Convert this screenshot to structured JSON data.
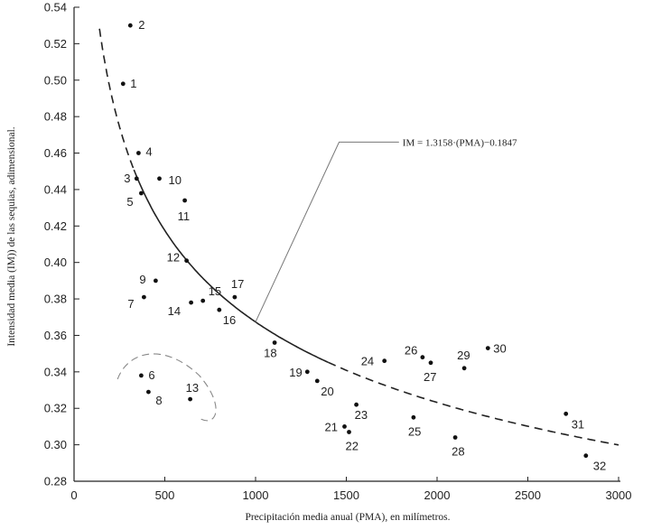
{
  "chart_data": {
    "type": "scatter",
    "xlabel": "Precipitación media anual (PMA), en milímetros.",
    "ylabel": "Intensidad media (IM)) de las sequias, adimensional.",
    "xlim": [
      0,
      3000
    ],
    "ylim": [
      0.28,
      0.54
    ],
    "x_ticks": [
      0,
      500,
      1000,
      1500,
      2000,
      2500,
      3000
    ],
    "y_ticks": [
      0.28,
      0.3,
      0.32,
      0.34,
      0.36,
      0.38,
      0.4,
      0.42,
      0.44,
      0.46,
      0.48,
      0.5,
      0.52,
      0.54
    ],
    "grid": false,
    "series": [
      {
        "points": [
          {
            "label": "1",
            "x": 270,
            "y": 0.498
          },
          {
            "label": "2",
            "x": 310,
            "y": 0.53
          },
          {
            "label": "3",
            "x": 345,
            "y": 0.446
          },
          {
            "label": "4",
            "x": 355,
            "y": 0.46
          },
          {
            "label": "5",
            "x": 370,
            "y": 0.438
          },
          {
            "label": "6",
            "x": 370,
            "y": 0.338
          },
          {
            "label": "7",
            "x": 385,
            "y": 0.381
          },
          {
            "label": "8",
            "x": 410,
            "y": 0.329
          },
          {
            "label": "9",
            "x": 450,
            "y": 0.39
          },
          {
            "label": "10",
            "x": 470,
            "y": 0.446
          },
          {
            "label": "11",
            "x": 610,
            "y": 0.434
          },
          {
            "label": "12",
            "x": 620,
            "y": 0.401
          },
          {
            "label": "13",
            "x": 640,
            "y": 0.325
          },
          {
            "label": "14",
            "x": 645,
            "y": 0.378
          },
          {
            "label": "15",
            "x": 710,
            "y": 0.379
          },
          {
            "label": "16",
            "x": 800,
            "y": 0.374
          },
          {
            "label": "17",
            "x": 885,
            "y": 0.381
          },
          {
            "label": "18",
            "x": 1105,
            "y": 0.356
          },
          {
            "label": "19",
            "x": 1285,
            "y": 0.34
          },
          {
            "label": "20",
            "x": 1340,
            "y": 0.335
          },
          {
            "label": "21",
            "x": 1490,
            "y": 0.31
          },
          {
            "label": "22",
            "x": 1515,
            "y": 0.307
          },
          {
            "label": "23",
            "x": 1555,
            "y": 0.322
          },
          {
            "label": "24",
            "x": 1710,
            "y": 0.346
          },
          {
            "label": "25",
            "x": 1870,
            "y": 0.315
          },
          {
            "label": "26",
            "x": 1920,
            "y": 0.348
          },
          {
            "label": "27",
            "x": 1965,
            "y": 0.345
          },
          {
            "label": "28",
            "x": 2100,
            "y": 0.304
          },
          {
            "label": "29",
            "x": 2150,
            "y": 0.342
          },
          {
            "label": "30",
            "x": 2280,
            "y": 0.353
          },
          {
            "label": "31",
            "x": 2710,
            "y": 0.317
          },
          {
            "label": "32",
            "x": 2820,
            "y": 0.294
          }
        ]
      }
    ],
    "fit_curve": {
      "coefficient": 1.3158,
      "exponent": -0.1847,
      "solid_range": [
        330,
        1400
      ],
      "dashed_ranges": [
        [
          140,
          330
        ],
        [
          1400,
          3000
        ]
      ]
    },
    "annotations": [
      {
        "text": "IM = 1.3158·(PMA)−0.1847",
        "points_to_x": 1000
      }
    ]
  }
}
